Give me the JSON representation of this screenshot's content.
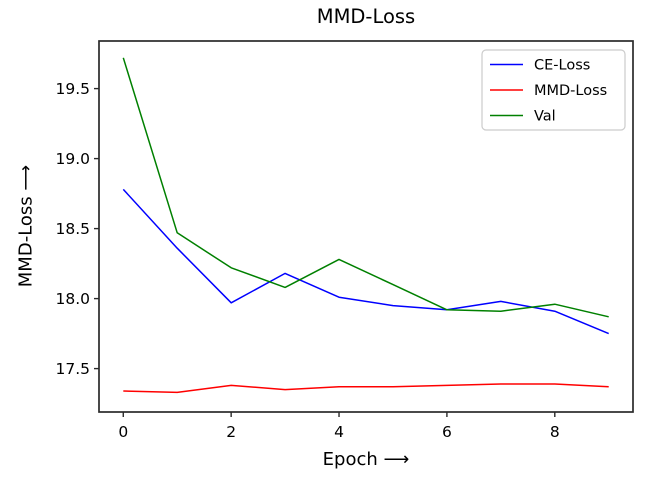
{
  "figure": {
    "background": "#ffffff",
    "spine_color": "#2a2a2a",
    "tick_color": "#2a2a2a",
    "text_color": "#000000",
    "legend_border_color": "#cccccc"
  },
  "chart_data": {
    "type": "line",
    "title": "MMD-Loss",
    "xlabel": "Epoch ⟶",
    "ylabel": "MMD-Loss ⟶",
    "x": [
      0,
      1,
      2,
      3,
      4,
      5,
      6,
      7,
      8,
      9
    ],
    "series": [
      {
        "name": "CE-Loss",
        "color": "#0000ff",
        "values": [
          18.78,
          18.36,
          17.97,
          18.18,
          18.01,
          17.95,
          17.92,
          17.98,
          17.91,
          17.75
        ]
      },
      {
        "name": "MMD-Loss",
        "color": "#ff0000",
        "values": [
          17.34,
          17.33,
          17.38,
          17.35,
          17.37,
          17.37,
          17.38,
          17.39,
          17.39,
          17.37
        ]
      },
      {
        "name": "Val",
        "color": "#008000",
        "values": [
          19.72,
          18.47,
          18.22,
          18.08,
          18.28,
          18.1,
          17.92,
          17.91,
          17.96,
          17.87
        ]
      }
    ],
    "xticks": [
      0,
      2,
      4,
      6,
      8
    ],
    "xtick_labels": [
      "0",
      "2",
      "4",
      "6",
      "8"
    ],
    "yticks": [
      17.5,
      18.0,
      18.5,
      19.0,
      19.5
    ],
    "ytick_labels": [
      "17.5",
      "18.0",
      "18.5",
      "19.0",
      "19.5"
    ],
    "xlim": [
      -0.45,
      9.45
    ],
    "ylim": [
      17.19,
      19.84
    ],
    "grid": false,
    "legend": {
      "position": "upper-right",
      "entries": [
        "CE-Loss",
        "MMD-Loss",
        "Val"
      ]
    }
  }
}
